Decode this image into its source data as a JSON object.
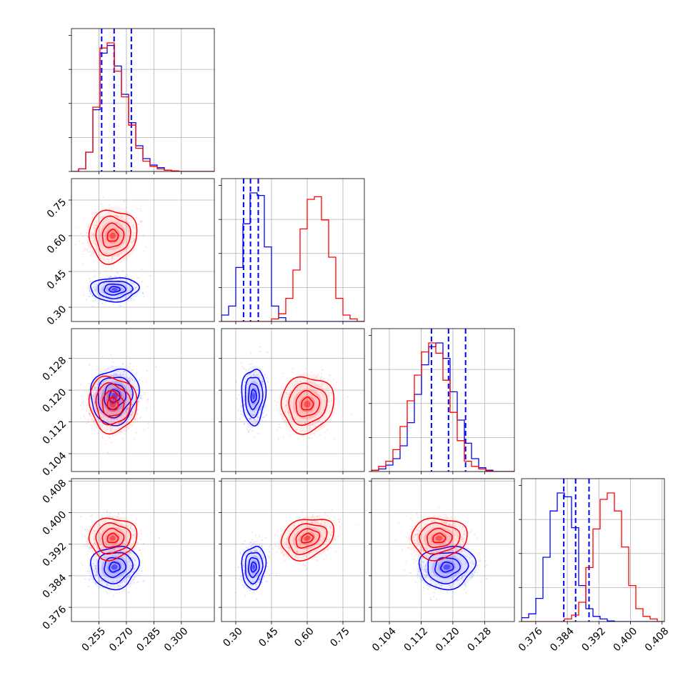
{
  "chart_data": {
    "type": "corner",
    "grid": true,
    "colors": {
      "series_a": "#0000ff",
      "series_b": "#ff0000"
    },
    "parameters": [
      {
        "range": [
          0.24,
          0.318
        ],
        "ticks": [
          0.255,
          0.27,
          0.285,
          0.3
        ],
        "tick_labels": [
          "0.255",
          "0.270",
          "0.285",
          "0.300"
        ]
      },
      {
        "range": [
          0.24,
          0.84
        ],
        "ticks": [
          0.3,
          0.45,
          0.6,
          0.75
        ],
        "tick_labels": [
          "0.30",
          "0.45",
          "0.60",
          "0.75"
        ]
      },
      {
        "range": [
          0.0995,
          0.1355
        ],
        "ticks": [
          0.104,
          0.112,
          0.12,
          0.128
        ],
        "tick_labels": [
          "0.104",
          "0.112",
          "0.120",
          "0.128"
        ]
      },
      {
        "range": [
          0.3724,
          0.4086
        ],
        "ticks": [
          0.376,
          0.384,
          0.392,
          0.4,
          0.408
        ],
        "tick_labels": [
          "0.376",
          "0.384",
          "0.392",
          "0.400",
          "0.408"
        ]
      }
    ],
    "series": [
      {
        "color": "#0000ff",
        "mean": [
          0.2635,
          0.375,
          0.1185,
          0.3862
        ],
        "std": [
          0.0065,
          0.025,
          0.0035,
          0.0027
        ],
        "quantile_lines": [
          [
            0.2565,
            0.2633,
            0.2727
          ],
          [
            0.3327,
            0.3618,
            0.3945
          ],
          [
            0.1146,
            0.1189,
            0.1232
          ],
          [
            0.3831,
            0.3861,
            0.3895
          ]
        ],
        "corr": {
          "1-0": 0.05,
          "2-0": 0.1,
          "3-0": 0.1,
          "2-1": 0.05,
          "3-1": 0.1,
          "3-2": 0.1
        },
        "hist": [
          [
            0,
            0.02,
            0.15,
            0.48,
            0.92,
            0.98,
            0.82,
            0.6,
            0.38,
            0.2,
            0.1,
            0.05,
            0.03,
            0.01,
            0.005,
            0,
            0,
            0,
            0,
            0
          ],
          [
            0.05,
            0.12,
            0.42,
            0.76,
            1.0,
            0.98,
            0.58,
            0.12,
            0.03,
            0,
            0,
            0,
            0,
            0,
            0,
            0,
            0,
            0,
            0,
            0
          ],
          [
            0.01,
            0.02,
            0.05,
            0.1,
            0.2,
            0.38,
            0.6,
            0.83,
            0.97,
            1.0,
            0.88,
            0.62,
            0.4,
            0.22,
            0.1,
            0.03,
            0.01,
            0,
            0,
            0
          ],
          [
            0.03,
            0.06,
            0.18,
            0.5,
            0.86,
            1.0,
            0.97,
            0.73,
            0.28,
            0.1,
            0.04,
            0.02,
            0.005,
            0,
            0,
            0,
            0,
            0,
            0,
            0
          ]
        ]
      },
      {
        "color": "#ff0000",
        "mean": [
          0.2625,
          0.6,
          0.1165,
          0.3935
        ],
        "std": [
          0.0065,
          0.055,
          0.0035,
          0.0026
        ],
        "quantile_lines": null,
        "corr": {
          "1-0": 0.05,
          "2-0": -0.05,
          "3-0": 0.05,
          "2-1": 0.05,
          "3-1": 0.25,
          "3-2": 0.05
        },
        "hist": [
          [
            0,
            0.02,
            0.15,
            0.5,
            0.96,
            1.0,
            0.78,
            0.58,
            0.36,
            0.18,
            0.08,
            0.04,
            0.02,
            0.01,
            0.005,
            0,
            0,
            0,
            0,
            0
          ],
          [
            0,
            0,
            0,
            0,
            0,
            0,
            0,
            0.02,
            0.06,
            0.18,
            0.4,
            0.72,
            0.95,
            0.97,
            0.79,
            0.5,
            0.18,
            0.05,
            0.02,
            0
          ],
          [
            0.01,
            0.04,
            0.08,
            0.17,
            0.35,
            0.55,
            0.75,
            0.93,
            1.0,
            0.92,
            0.71,
            0.46,
            0.24,
            0.08,
            0.04,
            0.02,
            0.005,
            0,
            0,
            0
          ],
          [
            0,
            0,
            0,
            0,
            0,
            0,
            0.02,
            0.05,
            0.15,
            0.42,
            0.72,
            0.95,
            1.0,
            0.86,
            0.58,
            0.28,
            0.1,
            0.04,
            0.02,
            0
          ]
        ]
      }
    ]
  }
}
